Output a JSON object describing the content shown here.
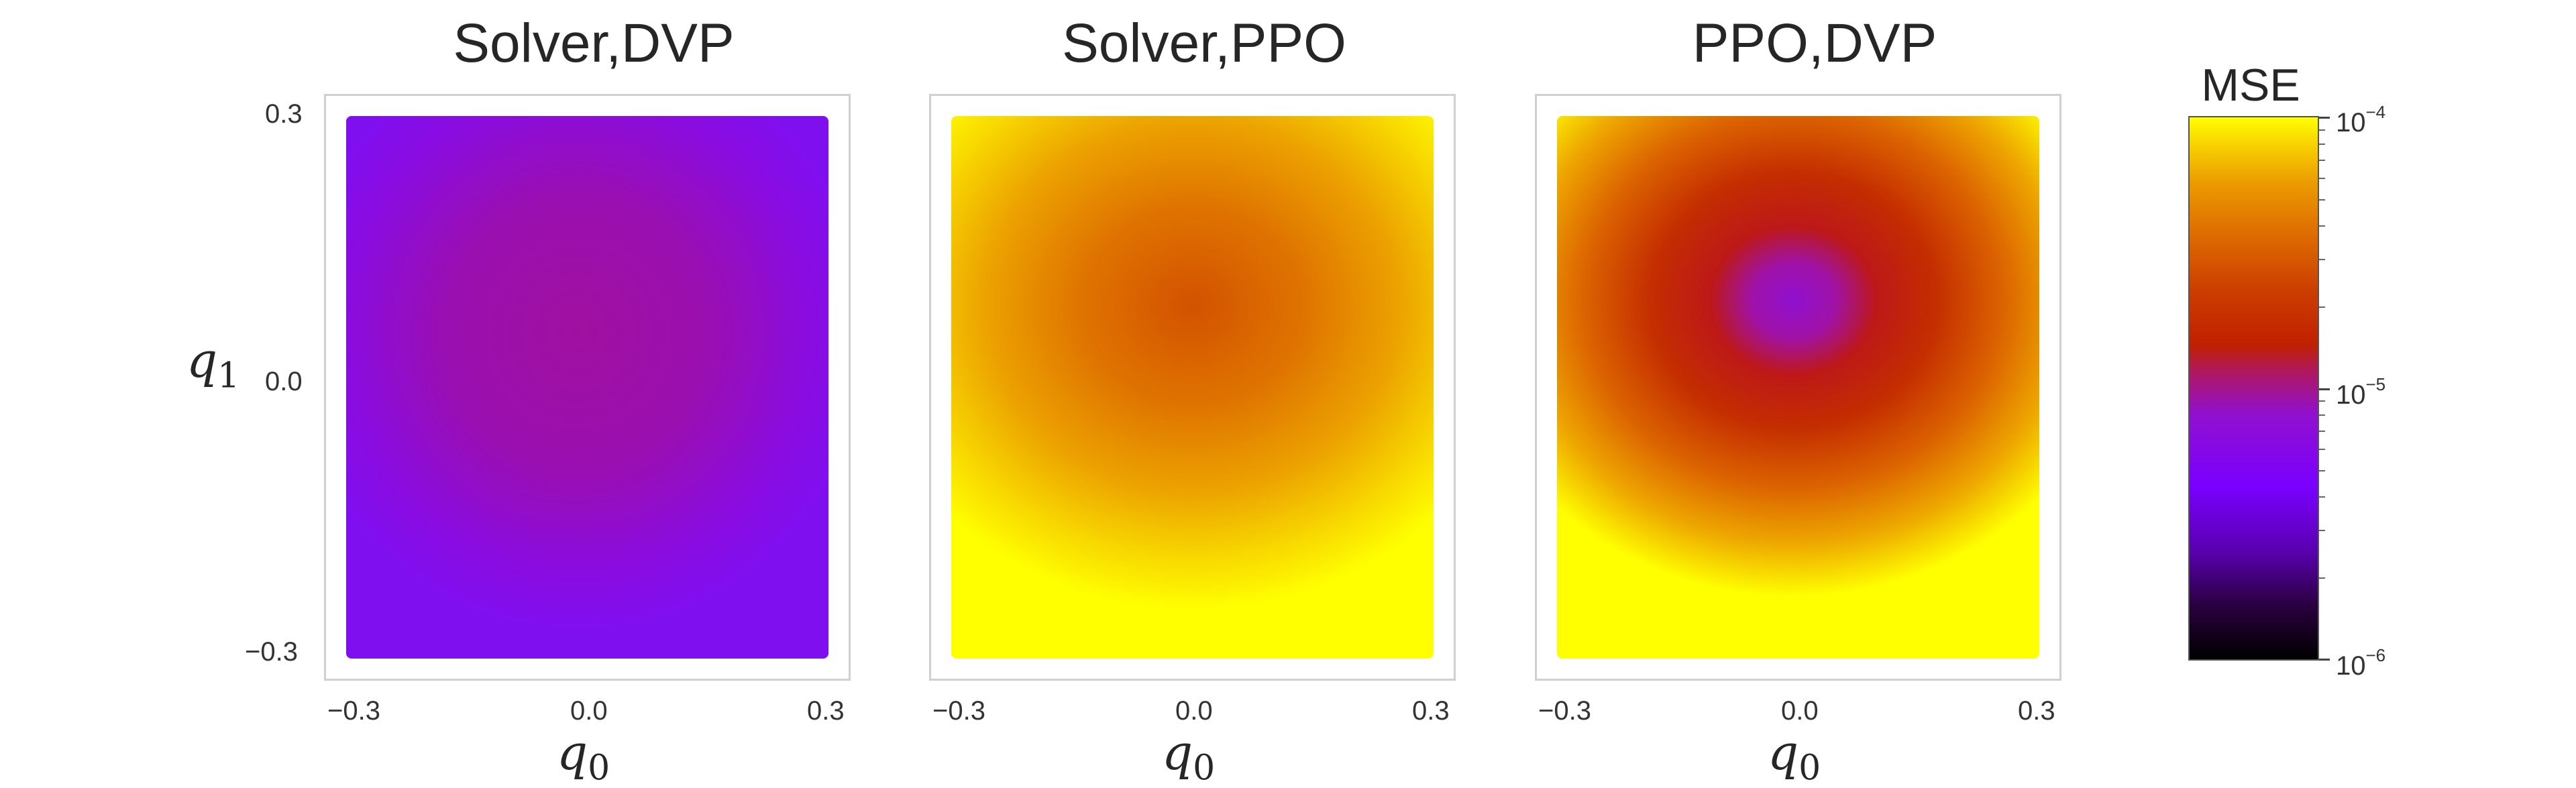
{
  "chart_data": {
    "type": "heatmap",
    "y_label": "q",
    "y_label_sub": "1",
    "y_ticks": [
      "0.3",
      "0.0",
      "−0.3"
    ],
    "panels": [
      {
        "title": "Solver,DVP",
        "x_label": "q",
        "x_label_sub": "0",
        "x_ticks": [
          "−0.3",
          "0.0",
          "0.3"
        ],
        "xlim": [
          -0.3,
          0.3
        ],
        "ylim": [
          -0.3,
          0.3
        ],
        "field": "nearly uniform MSE ~3e-6 across the domain"
      },
      {
        "title": "Solver,PPO",
        "x_label": "q",
        "x_label_sub": "0",
        "x_ticks": [
          "−0.3",
          "0.0",
          "0.3"
        ],
        "xlim": [
          -0.3,
          0.3
        ],
        "ylim": [
          -0.3,
          0.3
        ],
        "field": "minimum ~3e-5 near (0.0, 0.05); MSE rises to 1e-4 toward the edges"
      },
      {
        "title": "PPO,DVP",
        "x_label": "q",
        "x_label_sub": "0",
        "x_ticks": [
          "−0.3",
          "0.0",
          "0.3"
        ],
        "xlim": [
          -0.3,
          0.3
        ],
        "ylim": [
          -0.3,
          0.3
        ],
        "field": "minimum ~3e-6 near (-0.02, 0.06); MSE rises to 1e-4 toward the edges"
      }
    ],
    "colorbar": {
      "label": "MSE",
      "scale": "log",
      "range": [
        1e-06,
        0.0001
      ],
      "colormap": "gnuplot",
      "ticks": [
        {
          "base": "10",
          "exp": "−4"
        },
        {
          "base": "10",
          "exp": "−5"
        },
        {
          "base": "10",
          "exp": "−6"
        }
      ]
    }
  }
}
